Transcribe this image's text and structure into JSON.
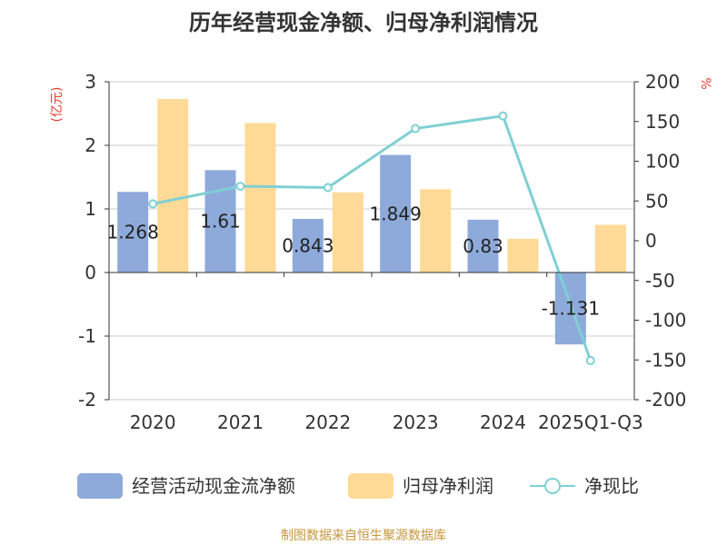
{
  "chart_data": {
    "type": "bar+line",
    "title": "历年经营现金净额、归母净利润情况",
    "categories": [
      "2020",
      "2021",
      "2022",
      "2023",
      "2024",
      "2025Q1-Q3"
    ],
    "y_left": {
      "unit": "(亿元)",
      "ticks": [
        3,
        2,
        1,
        0,
        -1,
        -2
      ],
      "ylim": [
        -2,
        3
      ]
    },
    "y_right": {
      "unit": "%",
      "ticks": [
        200,
        150,
        100,
        50,
        0,
        -50,
        -100,
        -150,
        -200
      ],
      "ylim": [
        -200,
        200
      ]
    },
    "series": [
      {
        "name": "经营活动现金流净额",
        "type": "bar",
        "axis": "left",
        "color": "#8eaadb",
        "values": [
          1.268,
          1.61,
          0.843,
          1.849,
          0.83,
          -1.131
        ],
        "labels": [
          "1.268",
          "1.61",
          "0.843",
          "1.849",
          "0.83",
          "-1.131"
        ]
      },
      {
        "name": "归母净利润",
        "type": "bar",
        "axis": "left",
        "color": "#ffd996",
        "values": [
          2.73,
          2.35,
          1.26,
          1.31,
          0.53,
          0.75
        ]
      },
      {
        "name": "净现比",
        "type": "line",
        "axis": "right",
        "color": "#7fd0d3",
        "values": [
          46.4,
          68.5,
          66.9,
          141.1,
          157.0,
          -150.8
        ]
      }
    ],
    "grid": true,
    "legend_position": "bottom"
  },
  "footer": {
    "source": "制图数据来自恒生聚源数据库"
  }
}
